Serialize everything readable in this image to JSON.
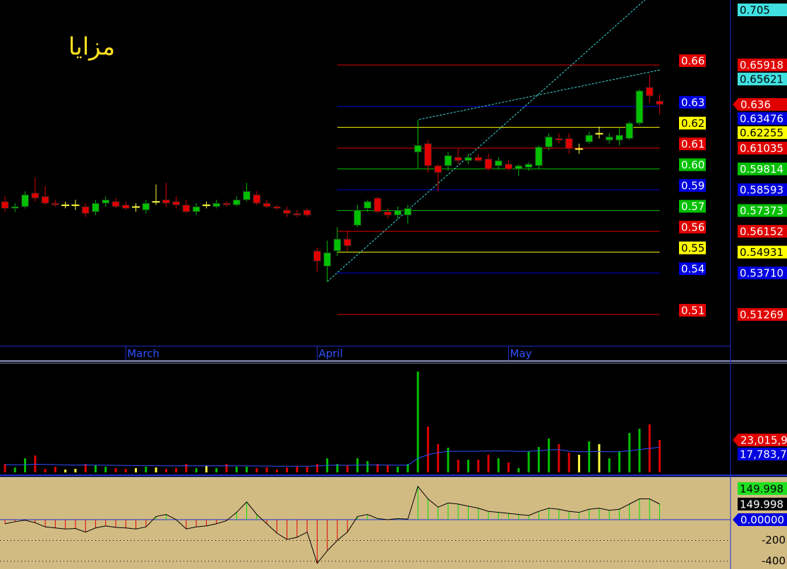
{
  "title": "مزايا",
  "chart_data": [
    {
      "type": "candlestick",
      "xlim": [
        -0.49,
        72.04
      ],
      "ylim": [
        0.4945,
        0.6973
      ],
      "xticks": [
        {
          "value": 12,
          "label": "March"
        },
        {
          "value": 31,
          "label": "April"
        },
        {
          "value": 50,
          "label": "May"
        }
      ],
      "open": [
        0.579,
        0.575,
        0.576,
        0.584,
        0.582,
        0.578,
        0.577,
        0.577,
        0.576,
        0.573,
        0.578,
        0.579,
        0.577,
        0.576,
        0.574,
        0.579,
        0.58,
        0.579,
        0.577,
        0.573,
        0.577,
        0.576,
        0.578,
        0.577,
        0.58,
        0.583,
        0.578,
        0.576,
        0.574,
        0.572,
        0.574,
        0.55,
        0.541,
        0.55,
        0.557,
        0.565,
        0.575,
        0.581,
        0.573,
        0.571,
        0.571,
        0.608,
        0.613,
        0.6,
        0.6,
        0.605,
        0.603,
        0.605,
        0.604,
        0.6,
        0.601,
        0.598,
        0.599,
        0.6,
        0.611,
        0.616,
        0.616,
        0.61,
        0.614,
        0.619,
        0.615,
        0.615,
        0.616,
        0.625,
        0.646,
        0.638
      ],
      "high": [
        0.582,
        0.578,
        0.585,
        0.593,
        0.588,
        0.58,
        0.579,
        0.58,
        0.578,
        0.58,
        0.582,
        0.581,
        0.579,
        0.578,
        0.58,
        0.589,
        0.59,
        0.582,
        0.58,
        0.578,
        0.579,
        0.58,
        0.579,
        0.582,
        0.59,
        0.585,
        0.58,
        0.577,
        0.576,
        0.574,
        0.575,
        0.552,
        0.556,
        0.564,
        0.562,
        0.577,
        0.58,
        0.582,
        0.575,
        0.576,
        0.577,
        0.627,
        0.615,
        0.601,
        0.608,
        0.61,
        0.607,
        0.607,
        0.607,
        0.605,
        0.603,
        0.601,
        0.602,
        0.612,
        0.619,
        0.619,
        0.619,
        0.613,
        0.62,
        0.623,
        0.619,
        0.622,
        0.626,
        0.645,
        0.653,
        0.642
      ],
      "low": [
        0.573,
        0.573,
        0.575,
        0.579,
        0.577,
        0.576,
        0.575,
        0.574,
        0.57,
        0.571,
        0.576,
        0.575,
        0.574,
        0.573,
        0.572,
        0.577,
        0.576,
        0.575,
        0.572,
        0.571,
        0.575,
        0.575,
        0.576,
        0.576,
        0.579,
        0.577,
        0.575,
        0.574,
        0.57,
        0.57,
        0.57,
        0.538,
        0.532,
        0.547,
        0.55,
        0.564,
        0.573,
        0.572,
        0.569,
        0.569,
        0.566,
        0.598,
        0.596,
        0.585,
        0.597,
        0.601,
        0.601,
        0.602,
        0.597,
        0.598,
        0.597,
        0.594,
        0.597,
        0.598,
        0.609,
        0.613,
        0.607,
        0.607,
        0.613,
        0.616,
        0.613,
        0.612,
        0.615,
        0.624,
        0.637,
        0.63
      ],
      "close": [
        0.575,
        0.576,
        0.583,
        0.581,
        0.578,
        0.577,
        0.577,
        0.577,
        0.572,
        0.578,
        0.58,
        0.576,
        0.575,
        0.576,
        0.578,
        0.579,
        0.578,
        0.577,
        0.573,
        0.576,
        0.577,
        0.578,
        0.577,
        0.58,
        0.585,
        0.578,
        0.576,
        0.575,
        0.572,
        0.571,
        0.571,
        0.544,
        0.549,
        0.557,
        0.553,
        0.574,
        0.579,
        0.573,
        0.571,
        0.574,
        0.575,
        0.612,
        0.6,
        0.596,
        0.606,
        0.603,
        0.605,
        0.603,
        0.598,
        0.603,
        0.598,
        0.6,
        0.601,
        0.611,
        0.617,
        0.615,
        0.61,
        0.61,
        0.618,
        0.619,
        0.617,
        0.618,
        0.625,
        0.644,
        0.641,
        0.636
      ],
      "up_color": "#00c000",
      "down_color": "#e00000",
      "doji_color": "#ffff40",
      "level_xlim": [
        33,
        65
      ],
      "levels": [
        {
          "value": 0.65918,
          "label": "0.66",
          "value_label": "0.65918",
          "color": "#e00000",
          "text_color": "#ffffff"
        },
        {
          "value": 0.63476,
          "label": "0.63",
          "value_label": "0.63476",
          "color": "#0000e0",
          "text_color": "#ffffff"
        },
        {
          "value": 0.62255,
          "label": "0.62",
          "value_label": "0.62255",
          "color": "#ffff00",
          "text_color": "#000000"
        },
        {
          "value": 0.61035,
          "label": "0.61",
          "value_label": "0.61035",
          "color": "#e00000",
          "text_color": "#ffffff"
        },
        {
          "value": 0.59814,
          "label": "0.60",
          "value_label": "0.59814",
          "color": "#00c000",
          "text_color": "#ffffff"
        },
        {
          "value": 0.58593,
          "label": "0.59",
          "value_label": "0.58593",
          "color": "#0000e0",
          "text_color": "#ffffff"
        },
        {
          "value": 0.57373,
          "label": "0.57",
          "value_label": "0.57373",
          "color": "#00c000",
          "text_color": "#ffffff"
        },
        {
          "value": 0.56152,
          "label": "0.56",
          "value_label": "0.56152",
          "color": "#e00000",
          "text_color": "#ffffff"
        },
        {
          "value": 0.54931,
          "label": "0.55",
          "value_label": "0.54931",
          "color": "#ffff00",
          "text_color": "#000000"
        },
        {
          "value": 0.5371,
          "label": "0.54",
          "value_label": "0.53710",
          "color": "#0000e0",
          "text_color": "#ffffff"
        },
        {
          "value": 0.51269,
          "label": "0.51",
          "value_label": "0.51269",
          "color": "#e00000",
          "text_color": "#ffffff"
        }
      ],
      "trendlines": [
        {
          "color": "#40e0e0",
          "points": [
            [
              32,
              0.532
            ],
            [
              65,
              0.705
            ]
          ]
        },
        {
          "color": "#40e0e0",
          "points": [
            [
              41,
              0.607
            ],
            [
              41,
              0.627
            ],
            [
              65,
              0.65621
            ]
          ]
        }
      ]
    },
    {
      "type": "volume",
      "ylim": [
        0,
        77500000
      ],
      "values": [
        6000000,
        3500000,
        10000000,
        12000000,
        2500000,
        4000000,
        2000000,
        2500000,
        6000000,
        5000000,
        4000000,
        3000000,
        2500000,
        3000000,
        4000000,
        3500000,
        2500000,
        3000000,
        6000000,
        3000000,
        5000000,
        3000000,
        6000000,
        4000000,
        4000000,
        3000000,
        3500000,
        2000000,
        3500000,
        4000000,
        4000000,
        6000000,
        10000000,
        6000000,
        5000000,
        10000000,
        8000000,
        6000000,
        5000000,
        4000000,
        6000000,
        71500000,
        32500000,
        20000000,
        17500000,
        9000000,
        9000000,
        9000000,
        12500000,
        10000000,
        7000000,
        3000000,
        15000000,
        18000000,
        24000000,
        20000000,
        14000000,
        12500000,
        22000000,
        20000000,
        10000000,
        15000000,
        28000000,
        31000000,
        34000000,
        23015900
      ],
      "value_label": "23,015,9",
      "ma": [
        5500000,
        5400000,
        5500000,
        5800000,
        5600000,
        5500000,
        5300000,
        5200000,
        5300000,
        5200000,
        5100000,
        5000000,
        4900000,
        4800000,
        4800000,
        4700000,
        4600000,
        4600000,
        4700000,
        4600000,
        4700000,
        4600000,
        4700000,
        4600000,
        4600000,
        4500000,
        4500000,
        4400000,
        4400000,
        4400000,
        4400000,
        4600000,
        5000000,
        5100000,
        5000000,
        5200000,
        5300000,
        5300000,
        5200000,
        5100000,
        5100000,
        10000000,
        12500000,
        14000000,
        15000000,
        15000000,
        15000000,
        15000000,
        15200000,
        15200000,
        15100000,
        14900000,
        15000000,
        15300000,
        16000000,
        16200000,
        15000000,
        14700000,
        14700000,
        14800000,
        14600000,
        14700000,
        15300000,
        16200000,
        17000000,
        17783700
      ],
      "ma_label": "17,783,7",
      "ma_color": "#3050ff"
    },
    {
      "type": "cci",
      "ylim": [
        -475,
        407
      ],
      "yticks": [
        {
          "value": 0,
          "label": "0.00000"
        },
        -200,
        -400
      ],
      "values": [
        -40,
        -20,
        -5,
        -30,
        -70,
        -80,
        -90,
        -85,
        -120,
        -80,
        -60,
        -75,
        -80,
        -90,
        -70,
        30,
        50,
        0,
        -90,
        -70,
        -60,
        -40,
        -10,
        70,
        170,
        50,
        -40,
        -130,
        -190,
        -170,
        -120,
        -420,
        -300,
        -200,
        -120,
        30,
        50,
        10,
        0,
        10,
        5,
        320,
        200,
        120,
        160,
        150,
        130,
        110,
        80,
        70,
        60,
        50,
        40,
        80,
        110,
        100,
        80,
        70,
        100,
        110,
        90,
        100,
        150,
        200,
        200,
        149.998
      ],
      "pos_color": "#00e000",
      "neg_color": "#e00000"
    }
  ]
}
